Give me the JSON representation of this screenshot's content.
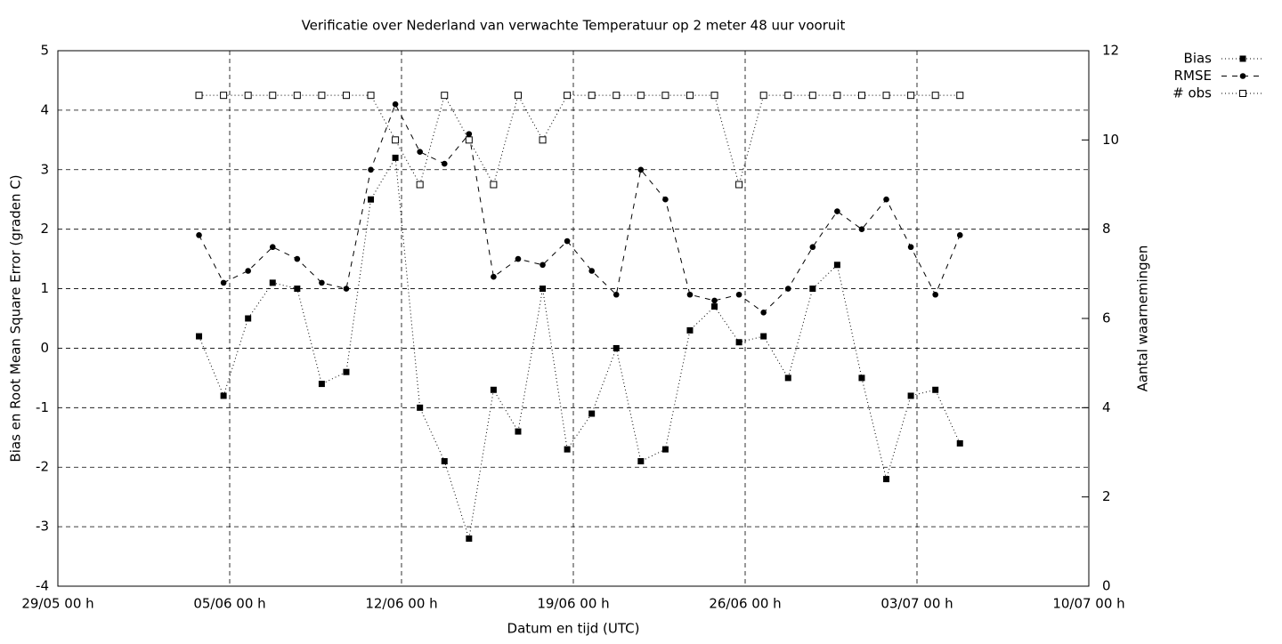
{
  "chart_data": {
    "type": "line",
    "title": "Verificatie over Nederland van verwachte Temperatuur op 2 meter 48 uur vooruit",
    "xlabel": "Datum en tijd (UTC)",
    "ylabel": "Bias en Root Mean Square Error (graden C)",
    "y2label": "Aantal waarnemingen",
    "x": [
      "03/06 18 h",
      "04/06 18 h",
      "05/06 18 h",
      "06/06 18 h",
      "07/06 18 h",
      "08/06 18 h",
      "09/06 18 h",
      "10/06 18 h",
      "11/06 18 h",
      "12/06 18 h",
      "13/06 18 h",
      "14/06 18 h",
      "15/06 18 h",
      "16/06 18 h",
      "17/06 18 h",
      "18/06 18 h",
      "19/06 18 h",
      "20/06 18 h",
      "21/06 18 h",
      "22/06 18 h",
      "23/06 18 h",
      "24/06 18 h",
      "25/06 18 h",
      "26/06 18 h",
      "27/06 18 h",
      "28/06 18 h",
      "29/06 18 h",
      "30/06 18 h",
      "01/07 18 h",
      "02/07 18 h",
      "03/07 18 h",
      "04/07 18 h"
    ],
    "xlim": [
      "29/05 00 h",
      "10/07 00 h"
    ],
    "xticks": [
      "29/05 00 h",
      "05/06 00 h",
      "12/06 00 h",
      "19/06 00 h",
      "26/06 00 h",
      "03/07 00 h",
      "10/07 00 h"
    ],
    "ylim": [
      -4,
      5
    ],
    "yticks": [
      -4,
      -3,
      -2,
      -1,
      0,
      1,
      2,
      3,
      4,
      5
    ],
    "y2lim": [
      0,
      12
    ],
    "y2ticks": [
      0,
      2,
      4,
      6,
      8,
      10,
      12
    ],
    "grid": true,
    "legend": "top-right-outside",
    "series": [
      {
        "name": "Bias",
        "color": "#000000",
        "line": "dotted",
        "marker": "filled-square",
        "values": [
          0.2,
          -0.8,
          0.5,
          1.1,
          1.0,
          -0.6,
          -0.4,
          2.5,
          3.2,
          -1.0,
          -1.9,
          -3.2,
          -0.7,
          -1.4,
          1.0,
          -1.7,
          -1.1,
          0.0,
          -1.9,
          -1.7,
          0.3,
          0.7,
          0.1,
          0.2,
          -0.5,
          1.0,
          1.4,
          -0.5,
          -2.2,
          -0.8,
          -0.7,
          -1.6
        ]
      },
      {
        "name": "RMSE",
        "color": "#000000",
        "line": "dashed",
        "marker": "filled-circle",
        "values": [
          1.9,
          1.1,
          1.3,
          1.7,
          1.5,
          1.1,
          1.0,
          3.0,
          4.1,
          3.3,
          3.1,
          3.6,
          1.2,
          1.5,
          1.4,
          1.8,
          1.3,
          0.9,
          3.0,
          2.5,
          0.9,
          0.8,
          0.9,
          0.6,
          1.0,
          1.7,
          2.3,
          2.0,
          2.5,
          1.7,
          0.9,
          1.9
        ]
      },
      {
        "name": "# obs",
        "color": "#000000",
        "line": "dotted",
        "marker": "open-square",
        "axis": "y2",
        "values": [
          11,
          11,
          11,
          11,
          11,
          11,
          11,
          11,
          10,
          9,
          11,
          10,
          9,
          11,
          10,
          11,
          11,
          11,
          11,
          11,
          11,
          11,
          9,
          11,
          11,
          11,
          11,
          11,
          11,
          11,
          11,
          11
        ]
      }
    ]
  }
}
